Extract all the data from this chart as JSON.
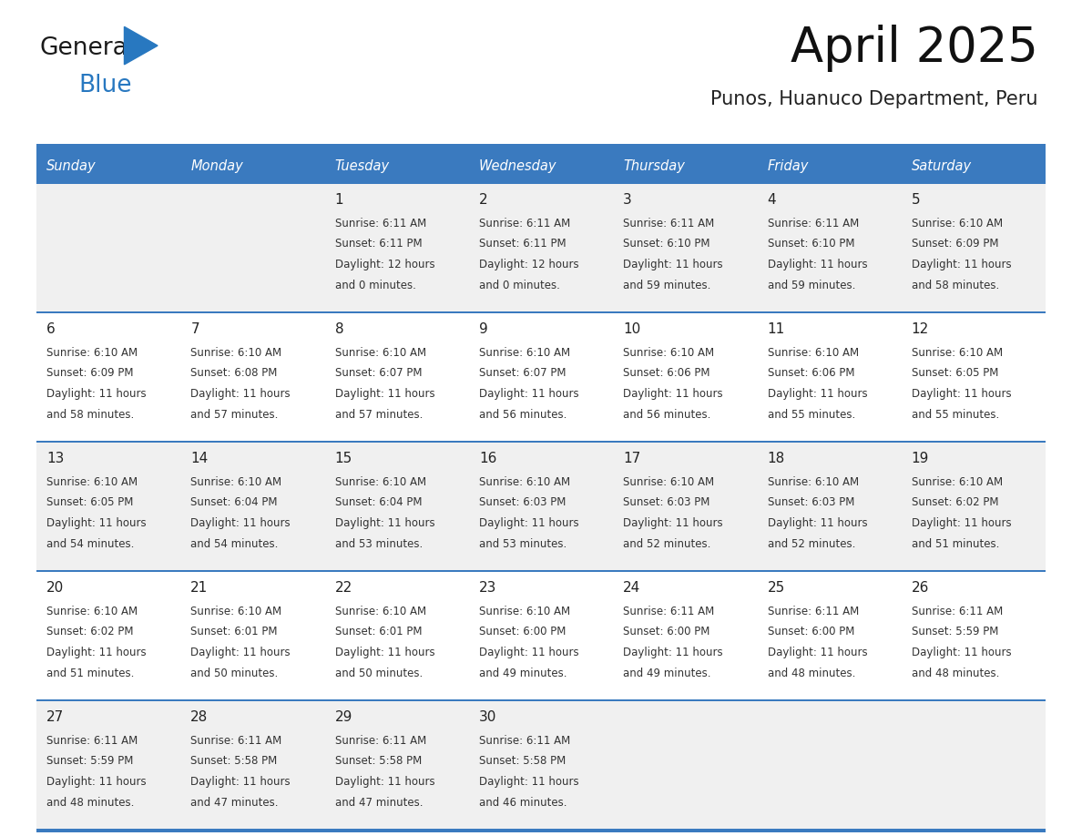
{
  "title": "April 2025",
  "subtitle": "Punos, Huanuco Department, Peru",
  "days_of_week": [
    "Sunday",
    "Monday",
    "Tuesday",
    "Wednesday",
    "Thursday",
    "Friday",
    "Saturday"
  ],
  "header_bg": "#3a7abf",
  "header_text_color": "#ffffff",
  "row_sep_color": "#3a7abf",
  "cell_bg_light": "#f0f0f0",
  "cell_bg_white": "#ffffff",
  "text_color": "#333333",
  "day_num_color": "#222222",
  "logo_general_color": "#1a1a1a",
  "logo_blue_color": "#2878c0",
  "calendar_data": [
    [
      {
        "day": "",
        "lines": []
      },
      {
        "day": "",
        "lines": []
      },
      {
        "day": "1",
        "lines": [
          "Sunrise: 6:11 AM",
          "Sunset: 6:11 PM",
          "Daylight: 12 hours",
          "and 0 minutes."
        ]
      },
      {
        "day": "2",
        "lines": [
          "Sunrise: 6:11 AM",
          "Sunset: 6:11 PM",
          "Daylight: 12 hours",
          "and 0 minutes."
        ]
      },
      {
        "day": "3",
        "lines": [
          "Sunrise: 6:11 AM",
          "Sunset: 6:10 PM",
          "Daylight: 11 hours",
          "and 59 minutes."
        ]
      },
      {
        "day": "4",
        "lines": [
          "Sunrise: 6:11 AM",
          "Sunset: 6:10 PM",
          "Daylight: 11 hours",
          "and 59 minutes."
        ]
      },
      {
        "day": "5",
        "lines": [
          "Sunrise: 6:10 AM",
          "Sunset: 6:09 PM",
          "Daylight: 11 hours",
          "and 58 minutes."
        ]
      }
    ],
    [
      {
        "day": "6",
        "lines": [
          "Sunrise: 6:10 AM",
          "Sunset: 6:09 PM",
          "Daylight: 11 hours",
          "and 58 minutes."
        ]
      },
      {
        "day": "7",
        "lines": [
          "Sunrise: 6:10 AM",
          "Sunset: 6:08 PM",
          "Daylight: 11 hours",
          "and 57 minutes."
        ]
      },
      {
        "day": "8",
        "lines": [
          "Sunrise: 6:10 AM",
          "Sunset: 6:07 PM",
          "Daylight: 11 hours",
          "and 57 minutes."
        ]
      },
      {
        "day": "9",
        "lines": [
          "Sunrise: 6:10 AM",
          "Sunset: 6:07 PM",
          "Daylight: 11 hours",
          "and 56 minutes."
        ]
      },
      {
        "day": "10",
        "lines": [
          "Sunrise: 6:10 AM",
          "Sunset: 6:06 PM",
          "Daylight: 11 hours",
          "and 56 minutes."
        ]
      },
      {
        "day": "11",
        "lines": [
          "Sunrise: 6:10 AM",
          "Sunset: 6:06 PM",
          "Daylight: 11 hours",
          "and 55 minutes."
        ]
      },
      {
        "day": "12",
        "lines": [
          "Sunrise: 6:10 AM",
          "Sunset: 6:05 PM",
          "Daylight: 11 hours",
          "and 55 minutes."
        ]
      }
    ],
    [
      {
        "day": "13",
        "lines": [
          "Sunrise: 6:10 AM",
          "Sunset: 6:05 PM",
          "Daylight: 11 hours",
          "and 54 minutes."
        ]
      },
      {
        "day": "14",
        "lines": [
          "Sunrise: 6:10 AM",
          "Sunset: 6:04 PM",
          "Daylight: 11 hours",
          "and 54 minutes."
        ]
      },
      {
        "day": "15",
        "lines": [
          "Sunrise: 6:10 AM",
          "Sunset: 6:04 PM",
          "Daylight: 11 hours",
          "and 53 minutes."
        ]
      },
      {
        "day": "16",
        "lines": [
          "Sunrise: 6:10 AM",
          "Sunset: 6:03 PM",
          "Daylight: 11 hours",
          "and 53 minutes."
        ]
      },
      {
        "day": "17",
        "lines": [
          "Sunrise: 6:10 AM",
          "Sunset: 6:03 PM",
          "Daylight: 11 hours",
          "and 52 minutes."
        ]
      },
      {
        "day": "18",
        "lines": [
          "Sunrise: 6:10 AM",
          "Sunset: 6:03 PM",
          "Daylight: 11 hours",
          "and 52 minutes."
        ]
      },
      {
        "day": "19",
        "lines": [
          "Sunrise: 6:10 AM",
          "Sunset: 6:02 PM",
          "Daylight: 11 hours",
          "and 51 minutes."
        ]
      }
    ],
    [
      {
        "day": "20",
        "lines": [
          "Sunrise: 6:10 AM",
          "Sunset: 6:02 PM",
          "Daylight: 11 hours",
          "and 51 minutes."
        ]
      },
      {
        "day": "21",
        "lines": [
          "Sunrise: 6:10 AM",
          "Sunset: 6:01 PM",
          "Daylight: 11 hours",
          "and 50 minutes."
        ]
      },
      {
        "day": "22",
        "lines": [
          "Sunrise: 6:10 AM",
          "Sunset: 6:01 PM",
          "Daylight: 11 hours",
          "and 50 minutes."
        ]
      },
      {
        "day": "23",
        "lines": [
          "Sunrise: 6:10 AM",
          "Sunset: 6:00 PM",
          "Daylight: 11 hours",
          "and 49 minutes."
        ]
      },
      {
        "day": "24",
        "lines": [
          "Sunrise: 6:11 AM",
          "Sunset: 6:00 PM",
          "Daylight: 11 hours",
          "and 49 minutes."
        ]
      },
      {
        "day": "25",
        "lines": [
          "Sunrise: 6:11 AM",
          "Sunset: 6:00 PM",
          "Daylight: 11 hours",
          "and 48 minutes."
        ]
      },
      {
        "day": "26",
        "lines": [
          "Sunrise: 6:11 AM",
          "Sunset: 5:59 PM",
          "Daylight: 11 hours",
          "and 48 minutes."
        ]
      }
    ],
    [
      {
        "day": "27",
        "lines": [
          "Sunrise: 6:11 AM",
          "Sunset: 5:59 PM",
          "Daylight: 11 hours",
          "and 48 minutes."
        ]
      },
      {
        "day": "28",
        "lines": [
          "Sunrise: 6:11 AM",
          "Sunset: 5:58 PM",
          "Daylight: 11 hours",
          "and 47 minutes."
        ]
      },
      {
        "day": "29",
        "lines": [
          "Sunrise: 6:11 AM",
          "Sunset: 5:58 PM",
          "Daylight: 11 hours",
          "and 47 minutes."
        ]
      },
      {
        "day": "30",
        "lines": [
          "Sunrise: 6:11 AM",
          "Sunset: 5:58 PM",
          "Daylight: 11 hours",
          "and 46 minutes."
        ]
      },
      {
        "day": "",
        "lines": []
      },
      {
        "day": "",
        "lines": []
      },
      {
        "day": "",
        "lines": []
      }
    ]
  ]
}
